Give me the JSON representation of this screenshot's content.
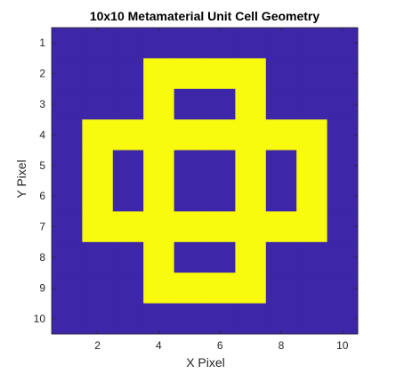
{
  "chart_data": {
    "type": "heatmap",
    "title": "10x10 Metamaterial Unit Cell Geometry",
    "xlabel": "X Pixel",
    "ylabel": "Y Pixel",
    "x_ticks": [
      "2",
      "4",
      "6",
      "8",
      "10"
    ],
    "y_ticks": [
      "1",
      "2",
      "3",
      "4",
      "5",
      "6",
      "7",
      "8",
      "9",
      "10"
    ],
    "xlim": [
      0.5,
      10.5
    ],
    "ylim": [
      0.5,
      10.5
    ],
    "y_direction": "reverse",
    "colormap": [
      "#3d26a8",
      "#f9fb0e"
    ],
    "grid": false,
    "matrix": [
      [
        0,
        0,
        0,
        0,
        0,
        0,
        0,
        0,
        0,
        0
      ],
      [
        0,
        0,
        0,
        1,
        1,
        1,
        1,
        0,
        0,
        0
      ],
      [
        0,
        0,
        0,
        1,
        0,
        0,
        1,
        0,
        0,
        0
      ],
      [
        0,
        1,
        1,
        1,
        1,
        1,
        1,
        1,
        1,
        0
      ],
      [
        0,
        1,
        0,
        1,
        0,
        0,
        1,
        0,
        1,
        0
      ],
      [
        0,
        1,
        0,
        1,
        0,
        0,
        1,
        0,
        1,
        0
      ],
      [
        0,
        1,
        1,
        1,
        1,
        1,
        1,
        1,
        1,
        0
      ],
      [
        0,
        0,
        0,
        1,
        0,
        0,
        1,
        0,
        0,
        0
      ],
      [
        0,
        0,
        0,
        1,
        1,
        1,
        1,
        0,
        0,
        0
      ],
      [
        0,
        0,
        0,
        0,
        0,
        0,
        0,
        0,
        0,
        0
      ]
    ]
  }
}
